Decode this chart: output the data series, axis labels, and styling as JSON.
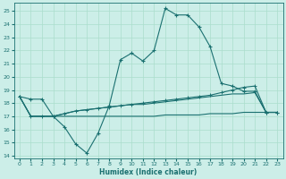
{
  "xlabel": "Humidex (Indice chaleur)",
  "bg_color": "#cceee8",
  "grid_color": "#aaddcc",
  "line_color": "#1a7070",
  "xlim": [
    -0.5,
    23.5
  ],
  "ylim": [
    13.8,
    25.6
  ],
  "xticks": [
    0,
    1,
    2,
    3,
    4,
    5,
    6,
    7,
    8,
    9,
    10,
    11,
    12,
    13,
    14,
    15,
    16,
    17,
    18,
    19,
    20,
    21,
    22,
    23
  ],
  "yticks": [
    14,
    15,
    16,
    17,
    18,
    19,
    20,
    21,
    22,
    23,
    24,
    25
  ],
  "series": [
    [
      18.5,
      18.3,
      18.3,
      17.0,
      16.2,
      14.9,
      14.2,
      15.7,
      17.8,
      21.3,
      21.8,
      21.2,
      22.0,
      25.2,
      24.7,
      24.7,
      23.8,
      22.3,
      19.5,
      19.3,
      18.9,
      18.9,
      17.3,
      17.3
    ],
    [
      18.5,
      17.0,
      17.0,
      17.0,
      17.2,
      17.4,
      17.5,
      17.6,
      17.7,
      17.8,
      17.9,
      18.0,
      18.1,
      18.2,
      18.3,
      18.4,
      18.5,
      18.6,
      18.8,
      19.0,
      19.2,
      19.3,
      17.3,
      17.3
    ],
    [
      18.5,
      17.0,
      17.0,
      17.0,
      17.2,
      17.4,
      17.5,
      17.6,
      17.7,
      17.8,
      17.9,
      17.9,
      18.0,
      18.1,
      18.2,
      18.3,
      18.4,
      18.5,
      18.6,
      18.7,
      18.7,
      18.8,
      17.3,
      17.3
    ],
    [
      18.5,
      17.0,
      17.0,
      17.0,
      17.0,
      17.0,
      17.0,
      17.0,
      17.0,
      17.0,
      17.0,
      17.0,
      17.0,
      17.1,
      17.1,
      17.1,
      17.1,
      17.2,
      17.2,
      17.2,
      17.3,
      17.3,
      17.3,
      17.3
    ]
  ]
}
